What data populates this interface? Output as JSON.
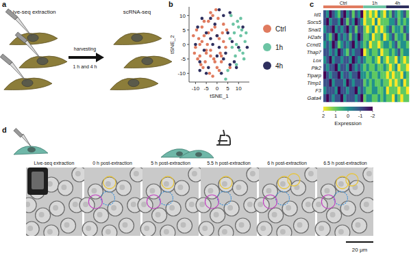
{
  "panel_labels": [
    "a",
    "b",
    "c",
    "d"
  ],
  "panel_a": {
    "steps": [
      "Live-seq extraction",
      "scRNA-seq"
    ],
    "arrow_label": [
      "harvesting",
      "1 h and 4 h"
    ]
  },
  "chart_data": [
    {
      "type": "scatter",
      "x_label": "tSNE_1",
      "y_label": "tSNE_2",
      "xlim": [
        -13,
        15
      ],
      "ylim": [
        -13,
        13
      ],
      "xticks": [
        -10,
        -5,
        0,
        5,
        10
      ],
      "yticks": [
        -10,
        -5,
        0,
        5,
        10
      ],
      "grid": false,
      "marker": "circle",
      "series": [
        {
          "name": "Ctrl",
          "color": "#e07b5f",
          "x": [
            -11,
            -10,
            -9.5,
            -8,
            -7,
            -6,
            -5.5,
            -4,
            -3,
            -2,
            -1,
            0,
            1,
            2,
            3,
            4,
            -10.5,
            -8.5,
            -7.5,
            -6,
            -4.5,
            -3.5,
            -2.5,
            -1.5,
            0.5,
            1.5,
            3,
            -9,
            -7,
            -5,
            -3,
            -1,
            1,
            2.5,
            -6.5,
            -4,
            -2,
            0,
            -5,
            -8,
            2,
            4.5,
            -3,
            -0.5,
            6
          ],
          "values": [
            3,
            -1,
            5,
            -4,
            1,
            8,
            -6,
            4,
            -2,
            10,
            6,
            -8,
            2,
            -4,
            7,
            -1,
            -3,
            2,
            -7,
            3,
            0,
            -10,
            5,
            -5,
            9,
            -3,
            1,
            -5,
            6,
            -2,
            11,
            -6,
            -9,
            4,
            -8,
            8,
            -11,
            3,
            -3,
            0,
            -6,
            5,
            -4,
            12,
            -8
          ]
        },
        {
          "name": "1h",
          "color": "#6cc4a4",
          "x": [
            6,
            7,
            8,
            9,
            10,
            11,
            12,
            13,
            8.5,
            9.5,
            10.5,
            11.5,
            7.5,
            12.5,
            5,
            6.5,
            9,
            11,
            13.5,
            4
          ],
          "values": [
            2,
            -1,
            4,
            0,
            6,
            3,
            -3,
            1,
            -4,
            8,
            -2,
            5,
            7,
            -5,
            -9,
            10,
            -7,
            9,
            4,
            -12
          ]
        },
        {
          "name": "4h",
          "color": "#2e2f5e",
          "x": [
            -9,
            -6,
            -3,
            0,
            3,
            6,
            9,
            12,
            -8,
            -5,
            -2,
            1,
            4,
            7,
            10,
            -7,
            -4,
            -1,
            2,
            5,
            8,
            -10,
            -3,
            0,
            3,
            6,
            -5,
            1,
            -8,
            14
          ],
          "values": [
            6,
            -2,
            9,
            3,
            -5,
            11,
            -8,
            6,
            -6,
            4,
            0,
            12,
            -3,
            1,
            -1,
            9,
            -8,
            7,
            -10,
            4,
            -6,
            0,
            2,
            -4,
            10,
            -7,
            -10,
            -1,
            -9,
            -1
          ]
        }
      ]
    },
    {
      "type": "heatmap",
      "groups": [
        {
          "name": "Ctrl",
          "color": "#e07b5f",
          "size": 14
        },
        {
          "name": "1h",
          "color": "#6cc4a4",
          "size": 8
        },
        {
          "name": "4h",
          "color": "#2e2f5e",
          "size": 8
        }
      ],
      "rows": [
        "Id1",
        "Socs5",
        "Snai1",
        "H2afx",
        "Ccnd1",
        "Thap7",
        "Lox",
        "Plk2",
        "Tiparp",
        "Timp1",
        "F3",
        "Gata4"
      ],
      "cells": [
        [
          -1,
          0,
          -2,
          -1,
          0,
          1,
          -1,
          -2,
          0,
          -1,
          1,
          -1,
          0,
          -2,
          2,
          1,
          2,
          1,
          2,
          0,
          1,
          2,
          0,
          1,
          -1,
          0,
          1,
          0,
          -1,
          1
        ],
        [
          -1,
          -2,
          0,
          -1,
          -1,
          0,
          -2,
          -1,
          1,
          -1,
          0,
          -2,
          -1,
          0,
          2,
          1,
          1,
          2,
          0,
          2,
          1,
          1,
          1,
          0,
          0,
          -1,
          1,
          0,
          1,
          0
        ],
        [
          0,
          -1,
          -1,
          -2,
          0,
          -1,
          0,
          -1,
          -2,
          0,
          -1,
          1,
          -1,
          -1,
          1,
          2,
          1,
          0,
          2,
          1,
          2,
          1,
          0,
          -1,
          1,
          0,
          0,
          1,
          -1,
          0
        ],
        [
          -1,
          0,
          1,
          -1,
          -2,
          0,
          -1,
          0,
          -1,
          1,
          -1,
          0,
          -2,
          -1,
          1,
          1,
          0,
          2,
          1,
          1,
          0,
          2,
          1,
          0,
          -1,
          1,
          0,
          0,
          1,
          -1
        ],
        [
          0,
          -1,
          0,
          -2,
          -1,
          1,
          0,
          -1,
          0,
          -1,
          -2,
          0,
          -1,
          0,
          1,
          0,
          2,
          1,
          1,
          2,
          1,
          0,
          0,
          1,
          0,
          -1,
          1,
          0,
          0,
          1
        ],
        [
          -1,
          -1,
          0,
          -1,
          0,
          -2,
          -1,
          0,
          1,
          -1,
          0,
          -1,
          -1,
          -2,
          2,
          1,
          0,
          1,
          1,
          0,
          2,
          1,
          1,
          0,
          1,
          0,
          -1,
          1,
          0,
          0
        ],
        [
          0,
          -1,
          -2,
          0,
          -1,
          -1,
          0,
          -1,
          -1,
          0,
          -2,
          -1,
          0,
          -1,
          0,
          1,
          1,
          0,
          1,
          2,
          0,
          1,
          2,
          1,
          1,
          2,
          0,
          1,
          2,
          1
        ],
        [
          -1,
          0,
          -1,
          -1,
          -2,
          0,
          -1,
          -1,
          0,
          -2,
          -1,
          0,
          -1,
          0,
          1,
          0,
          1,
          1,
          0,
          1,
          1,
          0,
          1,
          2,
          1,
          0,
          2,
          1,
          1,
          2
        ],
        [
          -2,
          -1,
          0,
          -1,
          -1,
          -2,
          0,
          -1,
          -1,
          0,
          -1,
          -1,
          -2,
          0,
          0,
          1,
          0,
          1,
          1,
          0,
          1,
          1,
          2,
          1,
          2,
          1,
          1,
          2,
          0,
          1
        ],
        [
          -1,
          -1,
          -2,
          0,
          -1,
          -1,
          -1,
          0,
          -2,
          -1,
          0,
          -1,
          -1,
          -1,
          1,
          0,
          1,
          0,
          1,
          1,
          0,
          1,
          1,
          2,
          1,
          2,
          1,
          0,
          2,
          1
        ],
        [
          0,
          -1,
          -1,
          -1,
          0,
          -2,
          -1,
          -1,
          0,
          -1,
          -1,
          -2,
          0,
          -1,
          0,
          1,
          1,
          0,
          0,
          1,
          1,
          0,
          2,
          1,
          1,
          1,
          2,
          1,
          1,
          2
        ],
        [
          -1,
          -2,
          -1,
          0,
          -1,
          -1,
          -2,
          0,
          -1,
          -1,
          -1,
          0,
          -1,
          -2,
          1,
          0,
          0,
          1,
          1,
          0,
          1,
          0,
          1,
          1,
          2,
          0,
          1,
          2,
          1,
          1
        ]
      ],
      "colorbar": {
        "label": "Expression",
        "range": [
          -2,
          2
        ],
        "ticks": [
          2,
          1,
          0,
          -1,
          -2
        ]
      }
    }
  ],
  "panel_d": {
    "frames": [
      "Live-seq extraction",
      "0 h post-extraction",
      "5 h post-extraction",
      "5.5 h post-extraction",
      "6 h post-extraction",
      "6.5 h post-extraction"
    ],
    "scale_bar": "20 μm"
  }
}
